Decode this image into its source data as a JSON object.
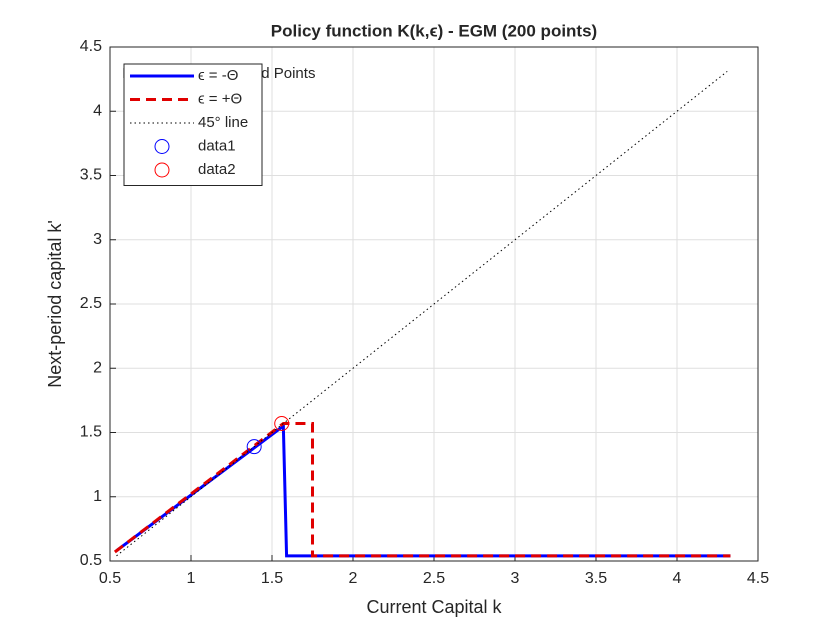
{
  "chart_data": {
    "type": "line",
    "title": "Policy function K(k,ϵ) - EGM (200 points)",
    "x_label": "Current Capital k",
    "y_label": "Next-period capital k'",
    "annotation": "Intersection and Fixed Points",
    "xlim": [
      0.5,
      4.5
    ],
    "ylim": [
      0.5,
      4.5
    ],
    "xticks": [
      0.5,
      1,
      1.5,
      2,
      2.5,
      3,
      3.5,
      4,
      4.5
    ],
    "yticks": [
      0.5,
      1,
      1.5,
      2,
      2.5,
      3,
      3.5,
      4,
      4.5
    ],
    "grid": true,
    "legend": "northwest",
    "series": [
      {
        "name": "ϵ = -Θ",
        "color": "#0000ff",
        "style": "solid",
        "x": [
          0.54,
          1.57,
          1.59,
          4.33
        ],
        "values": [
          0.58,
          1.55,
          0.54,
          0.54
        ]
      },
      {
        "name": "ϵ = +Θ",
        "color": "#e00000",
        "style": "dashed",
        "x": [
          0.53,
          1.57,
          1.75,
          1.75,
          4.33
        ],
        "values": [
          0.57,
          1.57,
          1.57,
          0.54,
          0.54
        ]
      },
      {
        "name": "45° line",
        "color": "#000000",
        "style": "dotted",
        "x": [
          0.54,
          4.31
        ],
        "values": [
          0.54,
          4.31
        ]
      },
      {
        "name": "data1",
        "color": "#0000ff",
        "style": "marker",
        "x": [
          1.39
        ],
        "values": [
          1.39
        ]
      },
      {
        "name": "data2",
        "color": "#ff0000",
        "style": "marker",
        "x": [
          1.56
        ],
        "values": [
          1.57
        ]
      }
    ]
  }
}
